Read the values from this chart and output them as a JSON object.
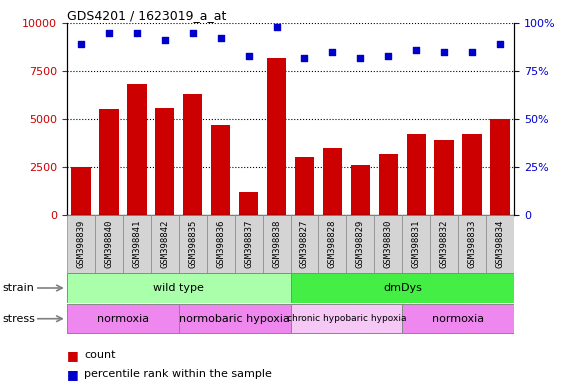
{
  "title": "GDS4201 / 1623019_a_at",
  "samples": [
    "GSM398839",
    "GSM398840",
    "GSM398841",
    "GSM398842",
    "GSM398835",
    "GSM398836",
    "GSM398837",
    "GSM398838",
    "GSM398827",
    "GSM398828",
    "GSM398829",
    "GSM398830",
    "GSM398831",
    "GSM398832",
    "GSM398833",
    "GSM398834"
  ],
  "counts": [
    2500,
    5500,
    6800,
    5600,
    6300,
    4700,
    1200,
    8200,
    3000,
    3500,
    2600,
    3200,
    4200,
    3900,
    4200,
    5000
  ],
  "percentile_ranks": [
    89,
    95,
    95,
    91,
    95,
    92,
    83,
    98,
    82,
    85,
    82,
    83,
    86,
    85,
    85,
    89
  ],
  "bar_color": "#cc0000",
  "dot_color": "#0000cc",
  "ylim_left": [
    0,
    10000
  ],
  "ylim_right": [
    0,
    100
  ],
  "yticks_left": [
    0,
    2500,
    5000,
    7500,
    10000
  ],
  "yticks_right": [
    0,
    25,
    50,
    75,
    100
  ],
  "strain_labels": [
    {
      "text": "wild type",
      "start": 0,
      "end": 7,
      "color": "#aaffaa"
    },
    {
      "text": "dmDys",
      "start": 8,
      "end": 15,
      "color": "#44ee44"
    }
  ],
  "stress_labels": [
    {
      "text": "normoxia",
      "start": 0,
      "end": 3,
      "color": "#ee88ee"
    },
    {
      "text": "normobaric hypoxia",
      "start": 4,
      "end": 7,
      "color": "#ee88ee"
    },
    {
      "text": "chronic hypobaric hypoxia",
      "start": 8,
      "end": 11,
      "color": "#f5c8f5"
    },
    {
      "text": "normoxia",
      "start": 12,
      "end": 15,
      "color": "#ee88ee"
    }
  ],
  "tick_bg_color": "#d4d4d4",
  "tick_border_color": "#888888",
  "bar_color_legend": "#cc0000",
  "dot_color_legend": "#0000cc",
  "tick_label_color_left": "#cc0000",
  "tick_label_color_right": "#0000cc",
  "grid_linestyle": ":",
  "grid_color": "#000000",
  "grid_linewidth": 0.8
}
